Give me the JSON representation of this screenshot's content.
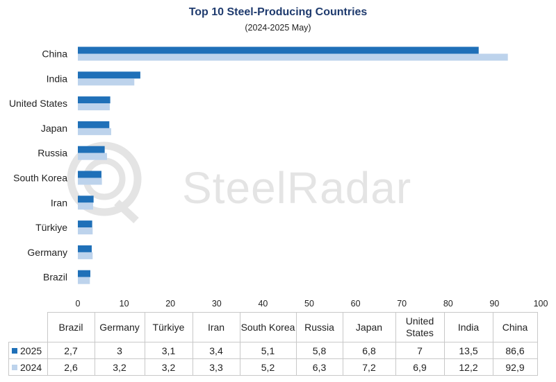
{
  "title": "Top 10 Steel-Producing Countries",
  "subtitle": "(2024-2025 May)",
  "watermark": "SteelRadar",
  "colors": {
    "s2025": "#1f70b8",
    "s2024": "#bdd3ec",
    "watermark": "#e4e4e4"
  },
  "chart_data": {
    "type": "bar",
    "orientation": "horizontal",
    "title": "Top 10 Steel-Producing Countries",
    "subtitle": "(2024-2025 May)",
    "categories": [
      "China",
      "India",
      "United States",
      "Japan",
      "Russia",
      "South Korea",
      "Iran",
      "Türkiye",
      "Germany",
      "Brazil"
    ],
    "series": [
      {
        "name": "2025",
        "color": "#1f70b8",
        "values": [
          86.6,
          13.5,
          7,
          6.8,
          5.8,
          5.1,
          3.4,
          3.1,
          3,
          2.7
        ]
      },
      {
        "name": "2024",
        "color": "#bdd3ec",
        "values": [
          92.9,
          12.2,
          6.9,
          7.2,
          6.3,
          5.2,
          3.3,
          3.2,
          3.2,
          2.6
        ]
      }
    ],
    "xlim": [
      0,
      100
    ],
    "xticks": [
      0,
      10,
      20,
      30,
      40,
      50,
      60,
      70,
      80,
      90,
      100
    ],
    "grid": false
  },
  "table": {
    "columns": [
      "Brazil",
      "Germany",
      "Türkiye",
      "Iran",
      "South Korea",
      "Russia",
      "Japan",
      "United States",
      "India",
      "China"
    ],
    "rows": [
      {
        "label": "2025",
        "color": "#1f70b8",
        "cells": [
          "2,7",
          "3",
          "3,1",
          "3,4",
          "5,1",
          "5,8",
          "6,8",
          "7",
          "13,5",
          "86,6"
        ]
      },
      {
        "label": "2024",
        "color": "#bdd3ec",
        "cells": [
          "2,6",
          "3,2",
          "3,2",
          "3,3",
          "5,2",
          "6,3",
          "7,2",
          "6,9",
          "12,2",
          "92,9"
        ]
      }
    ]
  }
}
